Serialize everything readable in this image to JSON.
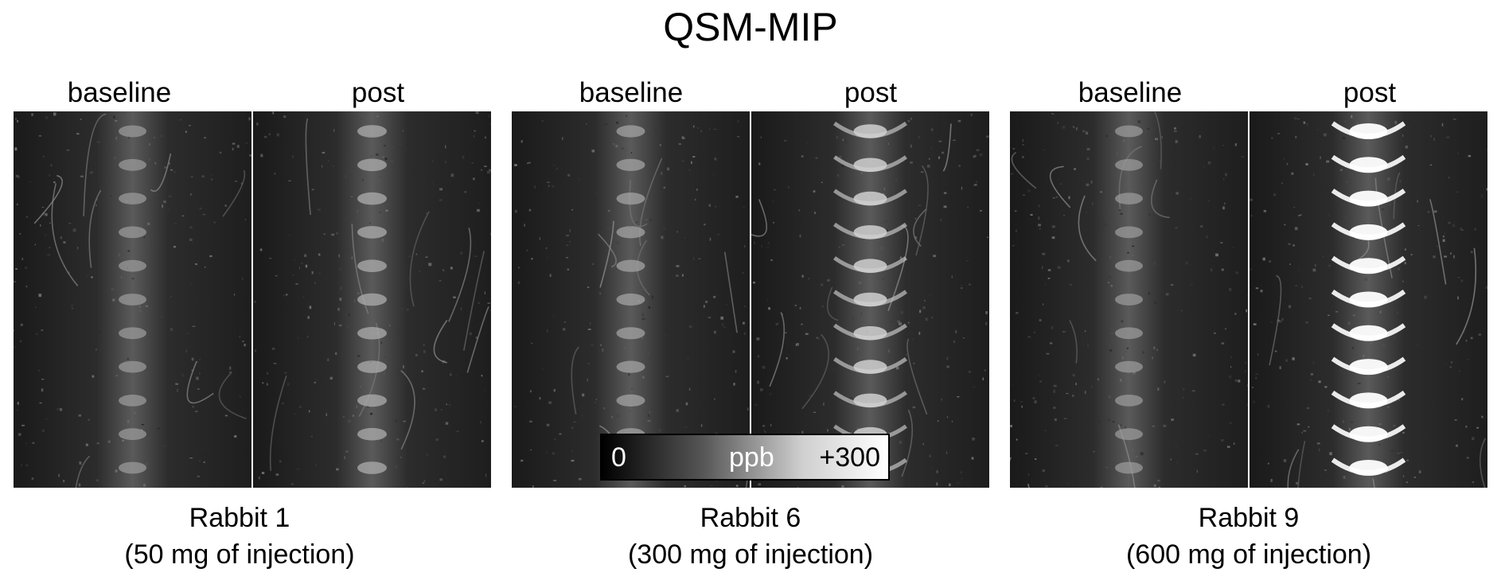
{
  "figure": {
    "title": "QSM-MIP",
    "groups": [
      {
        "caption_line1": "Rabbit 1",
        "caption_line2": "(50 mg of injection)",
        "panels": [
          {
            "label": "baseline",
            "image": "qsm-mip-brain-scan",
            "vertebra_brightness": 0.35
          },
          {
            "label": "post",
            "image": "qsm-mip-brain-scan",
            "vertebra_brightness": 0.45
          }
        ]
      },
      {
        "caption_line1": "Rabbit 6",
        "caption_line2": "(300 mg of injection)",
        "panels": [
          {
            "label": "baseline",
            "image": "qsm-mip-brain-scan",
            "vertebra_brightness": 0.4
          },
          {
            "label": "post",
            "image": "qsm-mip-brain-scan",
            "vertebra_brightness": 0.7
          }
        ]
      },
      {
        "caption_line1": "Rabbit 9",
        "caption_line2": "(600 mg of injection)",
        "panels": [
          {
            "label": "baseline",
            "image": "qsm-mip-brain-scan",
            "vertebra_brightness": 0.35
          },
          {
            "label": "post",
            "image": "qsm-mip-brain-scan",
            "vertebra_brightness": 1.0
          }
        ]
      }
    ],
    "colorbar": {
      "min_label": "0",
      "unit_label": "ppb",
      "max_label": "+300",
      "gradient_start": "#000000",
      "gradient_end": "#ffffff"
    }
  }
}
